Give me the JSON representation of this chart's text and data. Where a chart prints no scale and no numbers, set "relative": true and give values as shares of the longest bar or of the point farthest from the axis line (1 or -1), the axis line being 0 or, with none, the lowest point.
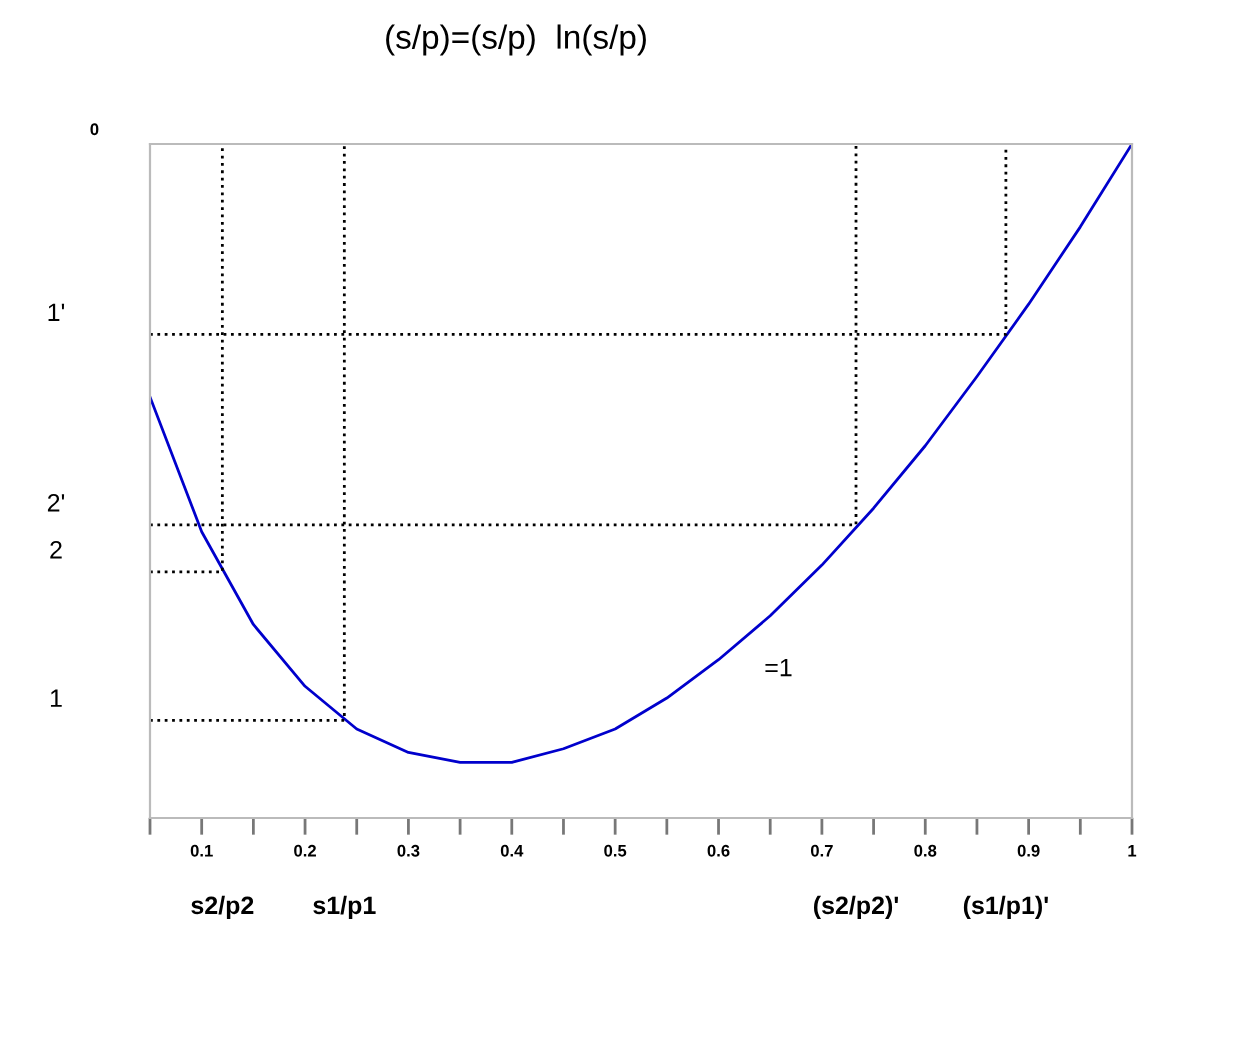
{
  "chart_data": {
    "type": "line",
    "title": "(s/p)=(s/p)  ln(s/p)",
    "relative": true,
    "xlim": [
      0.05,
      1
    ],
    "xticks": [
      0.1,
      0.2,
      0.3,
      0.4,
      0.5,
      0.6,
      0.7,
      0.8,
      0.9,
      1
    ],
    "grid": false,
    "legend": false,
    "marker": "none",
    "series": [
      {
        "color": "#0000cc",
        "line_style": "solid",
        "x": [
          0.05,
          0.1,
          0.15,
          0.2,
          0.25,
          0.3,
          0.35,
          0.4,
          0.45,
          0.5,
          0.55,
          0.6,
          0.65,
          0.7,
          0.75,
          0.8,
          0.85,
          0.9,
          0.95,
          1
        ],
        "values": [
          -0.409,
          -0.627,
          -0.777,
          -0.877,
          -0.946,
          -0.984,
          -1,
          -1,
          -0.978,
          -0.946,
          -0.896,
          -0.834,
          -0.763,
          -0.681,
          -0.589,
          -0.488,
          -0.376,
          -0.259,
          -0.134,
          0
        ]
      },
      {
        "color": "#000000",
        "line_style": "dotted",
        "x": [
          0.05,
          0.12,
          0.12
        ],
        "values": [
          -0.692,
          -0.692,
          0
        ]
      },
      {
        "color": "#000000",
        "line_style": "dotted",
        "x": [
          0.05,
          0.238,
          0.238
        ],
        "values": [
          -0.932,
          -0.932,
          0
        ]
      },
      {
        "color": "#000000",
        "line_style": "dotted",
        "x": [
          0.05,
          0.733,
          0.733
        ],
        "values": [
          -0.616,
          -0.616,
          0
        ]
      },
      {
        "color": "#000000",
        "line_style": "dotted",
        "x": [
          0.05,
          0.878,
          0.878
        ],
        "values": [
          -0.308,
          -0.308,
          0
        ]
      }
    ],
    "annotations": [
      "0",
      "1'",
      "2'",
      "2",
      "1",
      "s2/p2",
      "s1/p1",
      "(s2/p2)'",
      "(s1/p1)'",
      "=1"
    ]
  }
}
